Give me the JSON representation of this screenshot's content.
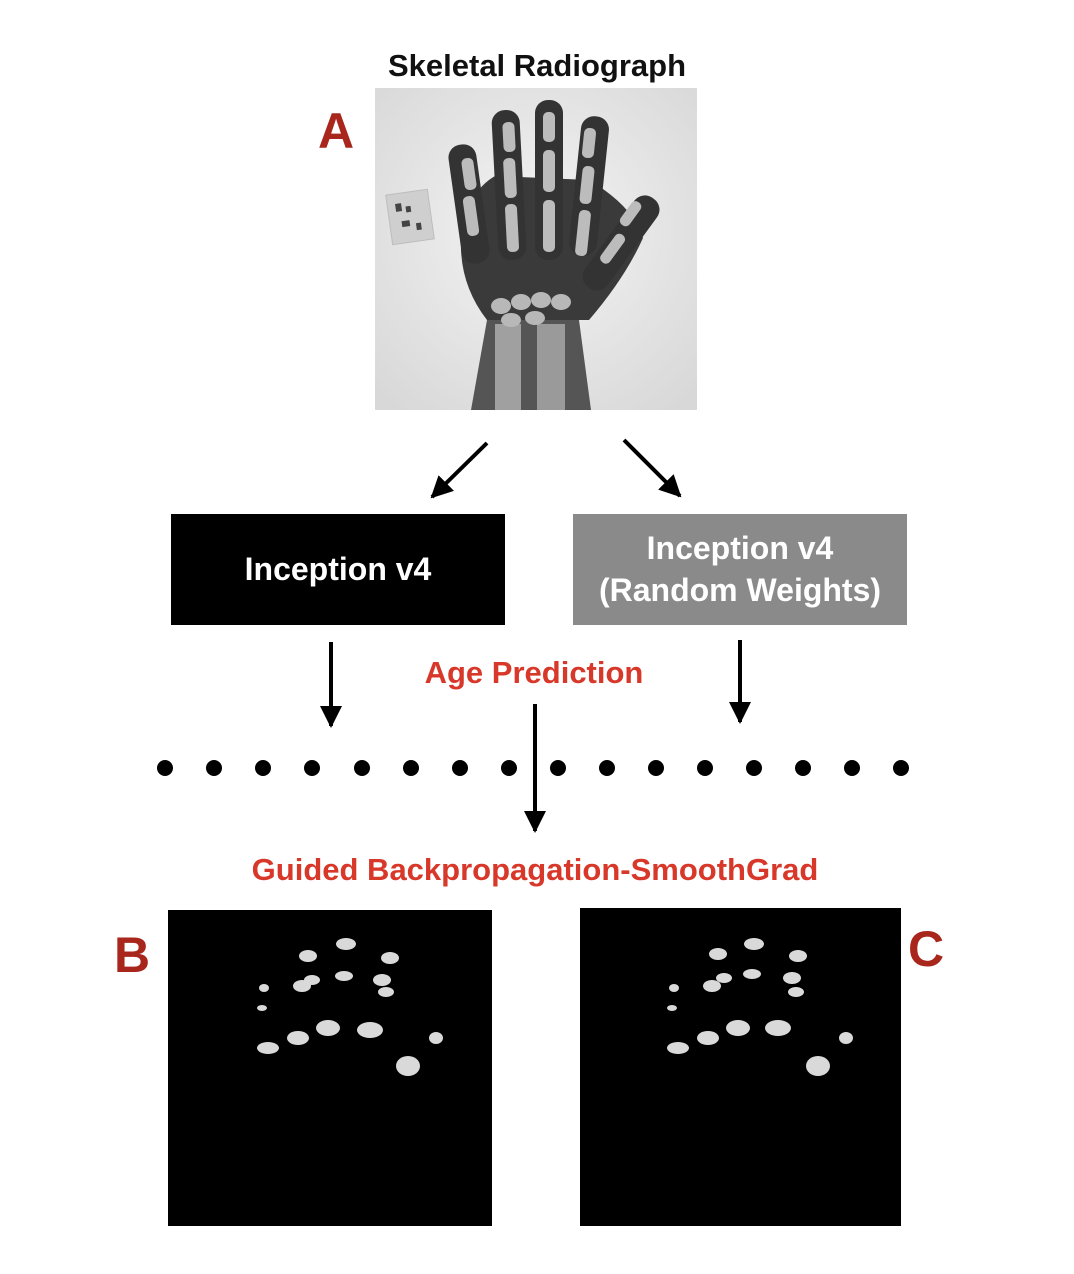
{
  "diagram": {
    "title": "Skeletal Radiograph",
    "panel_letters": {
      "a": "A",
      "b": "B",
      "c": "C"
    },
    "model_box_left": {
      "line1": "Inception v4",
      "line2": ""
    },
    "model_box_right": {
      "line1": "Inception v4",
      "line2": "(Random Weights)"
    },
    "age_prediction_label": "Age Prediction",
    "method_label": "Guided Backpropagation-SmoothGrad",
    "colors": {
      "panel_letter": "#a8261c",
      "red_label": "#d8382a",
      "box_left_fill": "#000000",
      "box_right_fill": "#8a8a8a"
    }
  }
}
